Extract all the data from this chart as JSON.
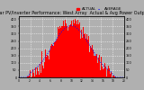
{
  "title": "Solar PV/Inverter Performance: West Array  Actual & Avg Power Output",
  "title_fontsize": 3.5,
  "bg_color": "#b0b0b0",
  "plot_bg_color": "#b0b0b0",
  "bar_color": "#ff0000",
  "avg_line_color": "#0000ff",
  "grid_color": "#ffffff",
  "ymax": 420,
  "num_bars": 288,
  "legend_actual": "ACTUAL",
  "legend_avg": "AVERAGE",
  "legend_fontsize": 3.0
}
